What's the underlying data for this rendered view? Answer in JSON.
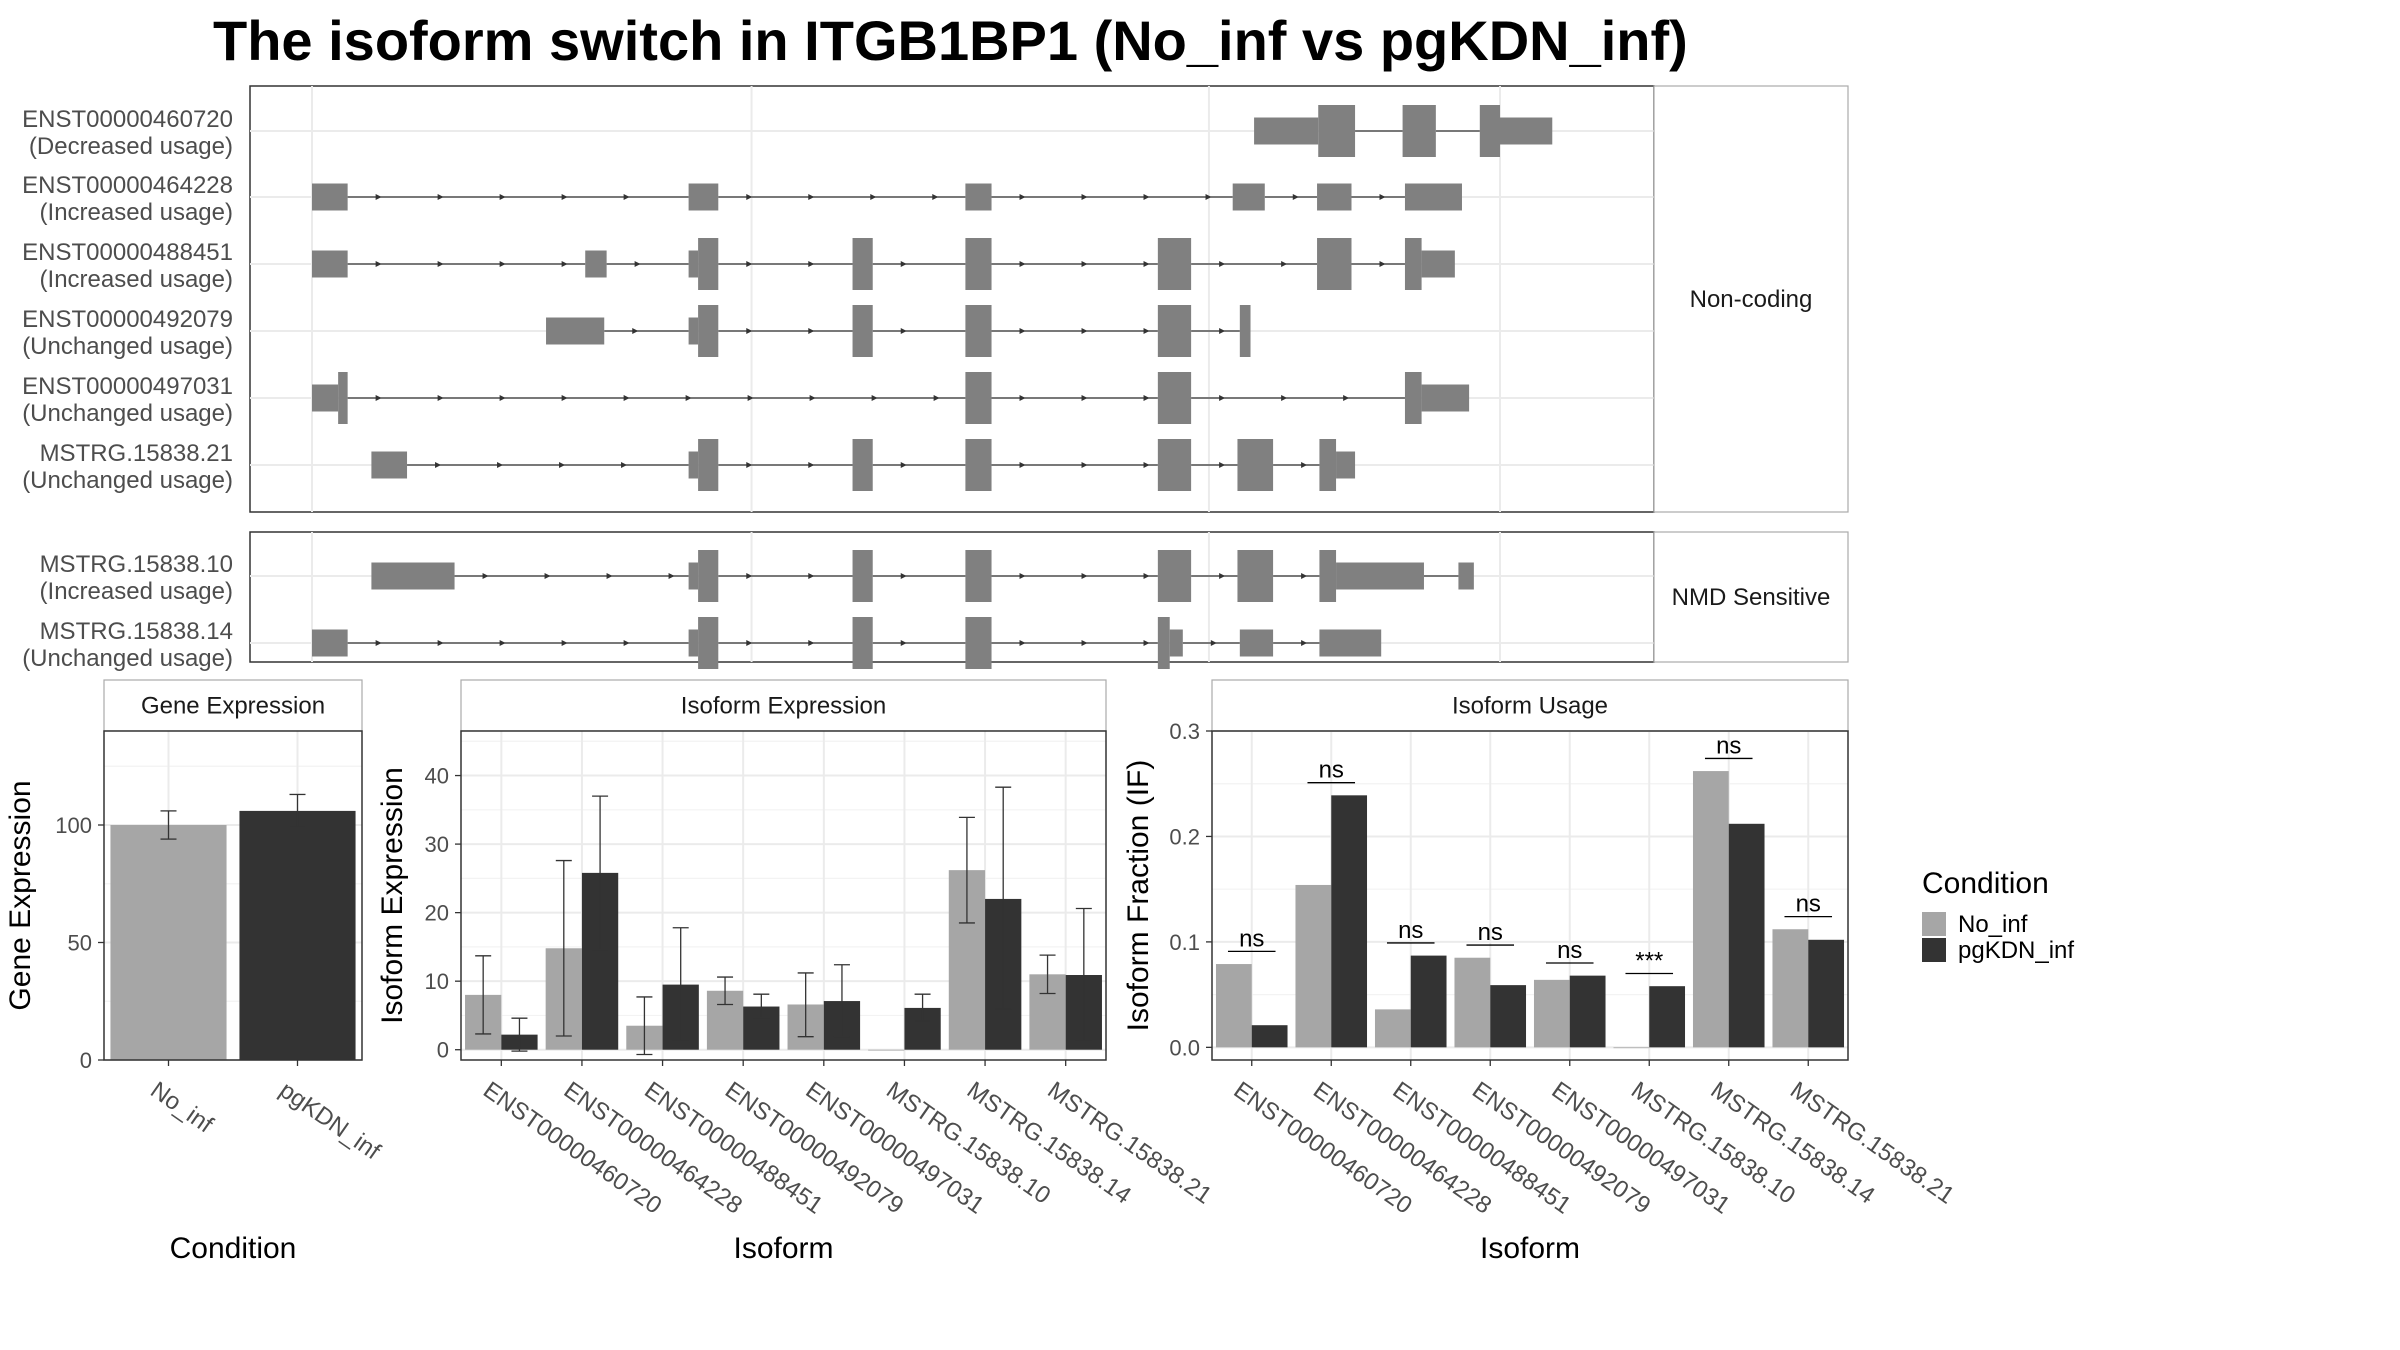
{
  "title": "The isoform switch in ITGB1BP1 (No_inf vs pgKDN_inf)",
  "colors": {
    "no_inf": "#a6a6a6",
    "pgkdn_inf": "#333333",
    "exon": "#808080",
    "grid": "#ebebeb",
    "strip_bg": "#ffffff",
    "panel_border": "#333333",
    "strip_border": "#aaaaaa"
  },
  "structure": {
    "groups": [
      {
        "label": "Non-coding",
        "transcripts": [
          {
            "id": "ENST00000460720",
            "usage": "(Decreased usage)",
            "exons": [
              [
                0.793,
                0.847,
                "thin"
              ],
              [
                0.847,
                0.878,
                "thick"
              ],
              [
                0.918,
                0.946,
                "thick"
              ],
              [
                0.983,
                1.0,
                "thick"
              ],
              [
                1.0,
                1.044,
                "thin"
              ]
            ],
            "intron_arrows": false
          },
          {
            "id": "ENST00000464228",
            "usage": "(Increased usage)",
            "exons": [
              [
                0.0,
                0.03,
                "thin"
              ],
              [
                0.317,
                0.342,
                "thin"
              ],
              [
                0.55,
                0.572,
                "thin"
              ],
              [
                0.775,
                0.802,
                "thin"
              ],
              [
                0.846,
                0.875,
                "thin"
              ],
              [
                0.92,
                0.968,
                "thin"
              ]
            ],
            "intron_arrows": true
          },
          {
            "id": "ENST00000488451",
            "usage": "(Increased usage)",
            "exons": [
              [
                0.0,
                0.03,
                "thin"
              ],
              [
                0.23,
                0.248,
                "thin"
              ],
              [
                0.317,
                0.325,
                "thin"
              ],
              [
                0.325,
                0.342,
                "thick"
              ],
              [
                0.455,
                0.472,
                "thick"
              ],
              [
                0.55,
                0.572,
                "thick"
              ],
              [
                0.712,
                0.74,
                "thick"
              ],
              [
                0.846,
                0.875,
                "thick"
              ],
              [
                0.92,
                0.934,
                "thick"
              ],
              [
                0.934,
                0.962,
                "thin"
              ]
            ],
            "intron_arrows": true
          },
          {
            "id": "ENST00000492079",
            "usage": "(Unchanged usage)",
            "exons": [
              [
                0.197,
                0.246,
                "thin"
              ],
              [
                0.317,
                0.325,
                "thin"
              ],
              [
                0.325,
                0.342,
                "thick"
              ],
              [
                0.455,
                0.472,
                "thick"
              ],
              [
                0.55,
                0.572,
                "thick"
              ],
              [
                0.712,
                0.74,
                "thick"
              ],
              [
                0.781,
                0.79,
                "thick"
              ]
            ],
            "intron_arrows": true
          },
          {
            "id": "ENST00000497031",
            "usage": "(Unchanged usage)",
            "exons": [
              [
                0.0,
                0.022,
                "thin"
              ],
              [
                0.022,
                0.03,
                "thick"
              ],
              [
                0.55,
                0.572,
                "thick"
              ],
              [
                0.712,
                0.74,
                "thick"
              ],
              [
                0.92,
                0.934,
                "thick"
              ],
              [
                0.934,
                0.974,
                "thin"
              ]
            ],
            "intron_arrows": true
          },
          {
            "id": "MSTRG.15838.21",
            "usage": "(Unchanged usage)",
            "exons": [
              [
                0.05,
                0.08,
                "thin"
              ],
              [
                0.317,
                0.325,
                "thin"
              ],
              [
                0.325,
                0.342,
                "thick"
              ],
              [
                0.455,
                0.472,
                "thick"
              ],
              [
                0.55,
                0.572,
                "thick"
              ],
              [
                0.712,
                0.74,
                "thick"
              ],
              [
                0.779,
                0.809,
                "thick"
              ],
              [
                0.848,
                0.862,
                "thick"
              ],
              [
                0.862,
                0.878,
                "thin"
              ]
            ],
            "intron_arrows": true
          }
        ]
      },
      {
        "label": "NMD Sensitive",
        "transcripts": [
          {
            "id": "MSTRG.15838.10",
            "usage": "(Increased usage)",
            "exons": [
              [
                0.05,
                0.12,
                "thin"
              ],
              [
                0.317,
                0.325,
                "thin"
              ],
              [
                0.325,
                0.342,
                "thick"
              ],
              [
                0.455,
                0.472,
                "thick"
              ],
              [
                0.55,
                0.572,
                "thick"
              ],
              [
                0.712,
                0.74,
                "thick"
              ],
              [
                0.779,
                0.809,
                "thick"
              ],
              [
                0.848,
                0.862,
                "thick"
              ],
              [
                0.862,
                0.936,
                "thin"
              ],
              [
                0.965,
                0.978,
                "thin"
              ]
            ],
            "intron_arrows": true
          },
          {
            "id": "MSTRG.15838.14",
            "usage": "(Unchanged usage)",
            "exons": [
              [
                0.0,
                0.03,
                "thin"
              ],
              [
                0.317,
                0.325,
                "thin"
              ],
              [
                0.325,
                0.342,
                "thick"
              ],
              [
                0.455,
                0.472,
                "thick"
              ],
              [
                0.55,
                0.572,
                "thick"
              ],
              [
                0.712,
                0.722,
                "thick"
              ],
              [
                0.722,
                0.733,
                "thin"
              ],
              [
                0.781,
                0.809,
                "thin"
              ],
              [
                0.848,
                0.9,
                "thin"
              ]
            ],
            "intron_arrows": true
          }
        ]
      }
    ]
  },
  "chart_data": [
    {
      "type": "bar",
      "title": "Gene Expression",
      "xlabel": "Condition",
      "ylabel": "Gene Expression",
      "ylim": [
        0,
        140
      ],
      "yticks": [
        0,
        50,
        100
      ],
      "categories": [
        "No_inf",
        "pgKDN_inf"
      ],
      "values": [
        100,
        106
      ],
      "error": [
        [
          94,
          106
        ],
        [
          99,
          113
        ]
      ]
    },
    {
      "type": "bar",
      "title": "Isoform Expression",
      "xlabel": "Isoform",
      "ylabel": "Isoform Expression",
      "ylim": [
        -1.5,
        46.5
      ],
      "yticks": [
        0,
        10,
        20,
        30,
        40
      ],
      "categories": [
        "ENST00000460720",
        "ENST00000464228",
        "ENST00000488451",
        "ENST00000492079",
        "ENST00000497031",
        "MSTRG.15838.10",
        "MSTRG.15838.14",
        "MSTRG.15838.21"
      ],
      "series": [
        {
          "name": "No_inf",
          "values": [
            8,
            14.8,
            3.5,
            8.6,
            6.6,
            0,
            26.2,
            11
          ],
          "error": [
            [
              2.3,
              13.7
            ],
            [
              2.0,
              27.6
            ],
            [
              -0.7,
              7.7
            ],
            [
              6.6,
              10.6
            ],
            [
              1.9,
              11.2
            ],
            [
              0,
              0
            ],
            [
              18.5,
              33.9
            ],
            [
              8.2,
              13.8
            ]
          ]
        },
        {
          "name": "pgKDN_inf",
          "values": [
            2.2,
            25.8,
            9.5,
            6.3,
            7.1,
            6.1,
            22,
            10.9
          ],
          "error": [
            [
              -0.2,
              4.6
            ],
            [
              14.6,
              37
            ],
            [
              1.3,
              17.8
            ],
            [
              4.6,
              8.1
            ],
            [
              1.9,
              12.4
            ],
            [
              4.2,
              8.1
            ],
            [
              5.9,
              38.3
            ],
            [
              1.3,
              20.6
            ]
          ]
        }
      ]
    },
    {
      "type": "bar",
      "title": "Isoform Usage",
      "xlabel": "Isoform",
      "ylabel": "Isoform Fraction (IF)",
      "ylim": [
        -0.012,
        0.3
      ],
      "yticks": [
        0.0,
        0.1,
        0.2,
        0.3
      ],
      "ytick_labels": [
        "0.0",
        "0.1",
        "0.2",
        "0.3"
      ],
      "categories": [
        "ENST00000460720",
        "ENST00000464228",
        "ENST00000488451",
        "ENST00000492079",
        "ENST00000497031",
        "MSTRG.15838.10",
        "MSTRG.15838.14",
        "MSTRG.15838.21"
      ],
      "series": [
        {
          "name": "No_inf",
          "values": [
            0.079,
            0.154,
            0.036,
            0.085,
            0.064,
            0.0,
            0.262,
            0.112
          ]
        },
        {
          "name": "pgKDN_inf",
          "values": [
            0.021,
            0.239,
            0.087,
            0.059,
            0.068,
            0.058,
            0.212,
            0.102
          ]
        }
      ],
      "significance": [
        "ns",
        "ns",
        "ns",
        "ns",
        "ns",
        "***",
        "ns",
        "ns"
      ],
      "significance_y": [
        0.091,
        0.251,
        0.099,
        0.097,
        0.08,
        0.07,
        0.274,
        0.124
      ]
    }
  ],
  "legend": {
    "title": "Condition",
    "items": [
      "No_inf",
      "pgKDN_inf"
    ]
  }
}
